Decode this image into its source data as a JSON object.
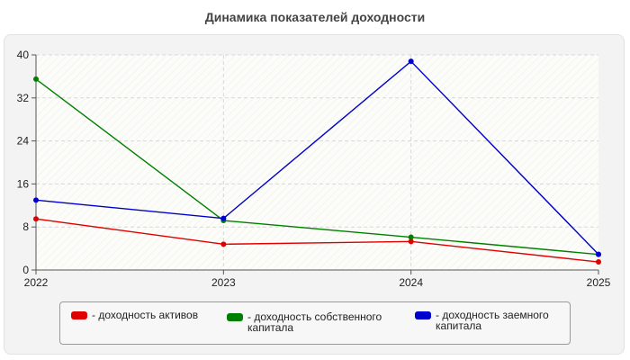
{
  "chart_data": {
    "type": "line",
    "title": "Динамика показателей доходности",
    "categories": [
      "2022",
      "2023",
      "2024",
      "2025"
    ],
    "ylim": [
      0,
      40
    ],
    "yticks": [
      "0",
      "8",
      "16",
      "24",
      "32",
      "40"
    ],
    "grid": true,
    "legend_position": "bottom",
    "series": [
      {
        "name": "- доходность активов",
        "color": "#e00000",
        "values": [
          9.5,
          4.8,
          5.3,
          1.5
        ]
      },
      {
        "name": "- доходность собственного\nкапитала",
        "color": "#008000",
        "values": [
          35.5,
          9.2,
          6.1,
          2.9
        ]
      },
      {
        "name": "- доходность заемного\nкапитала",
        "color": "#0000cc",
        "values": [
          13.0,
          9.6,
          38.8,
          2.9
        ]
      }
    ]
  }
}
